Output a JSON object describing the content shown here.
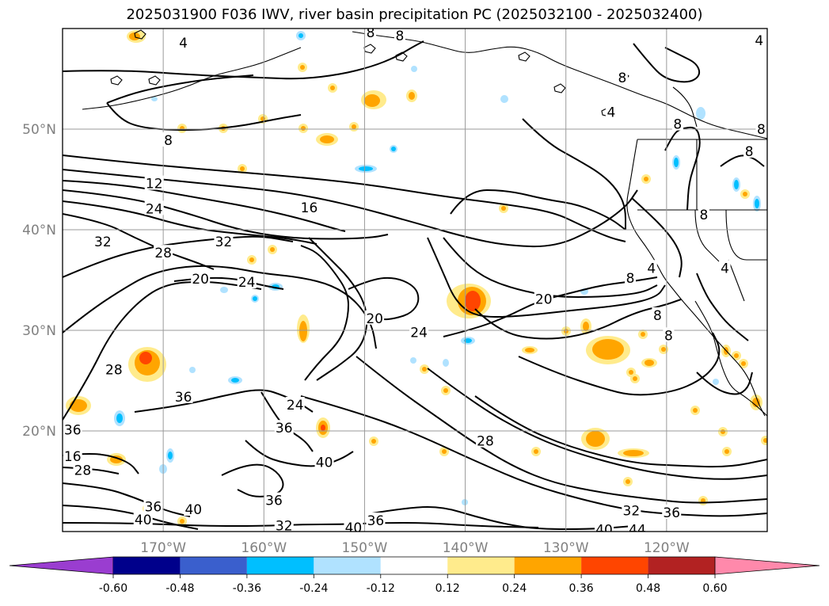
{
  "title": "2025031900 F036 IWV, river basin precipitation PC (2025032100 - 2025032400)",
  "chart_data": {
    "type": "map",
    "title": "2025031900 F036 IWV, river basin precipitation PC (2025032100 - 2025032400)",
    "extent": {
      "lon": [
        -180,
        -110
      ],
      "lat": [
        10,
        60
      ]
    },
    "grid": true,
    "lat_ticks": [
      {
        "value": 20,
        "label": "20°N"
      },
      {
        "value": 30,
        "label": "30°N"
      },
      {
        "value": 40,
        "label": "40°N"
      },
      {
        "value": 50,
        "label": "50°N"
      }
    ],
    "lon_ticks": [
      {
        "value": -170,
        "label": "170°W"
      },
      {
        "value": -160,
        "label": "160°W"
      },
      {
        "value": -150,
        "label": "150°W"
      },
      {
        "value": -140,
        "label": "140°W"
      },
      {
        "value": -130,
        "label": "130°W"
      },
      {
        "value": -120,
        "label": "120°W"
      }
    ],
    "iwv_contour_levels": [
      4,
      8,
      12,
      16,
      20,
      24,
      28,
      32,
      36,
      40,
      44
    ],
    "contour_labels": [
      {
        "text": "4",
        "lon": -168.0,
        "lat": 58.6
      },
      {
        "text": "8",
        "lon": -149.4,
        "lat": 59.6
      },
      {
        "text": "8",
        "lon": -146.5,
        "lat": 59.3
      },
      {
        "text": "8",
        "lon": -124.4,
        "lat": 55.1
      },
      {
        "text": "4",
        "lon": -110.8,
        "lat": 58.8
      },
      {
        "text": "4",
        "lon": -125.5,
        "lat": 51.7
      },
      {
        "text": "8",
        "lon": -118.9,
        "lat": 50.5
      },
      {
        "text": "8",
        "lon": -110.6,
        "lat": 50.0
      },
      {
        "text": "8",
        "lon": -169.5,
        "lat": 48.9
      },
      {
        "text": "8",
        "lon": -111.8,
        "lat": 47.8
      },
      {
        "text": "8",
        "lon": -116.3,
        "lat": 41.5
      },
      {
        "text": "12",
        "lon": -170.9,
        "lat": 44.6
      },
      {
        "text": "16",
        "lon": -155.5,
        "lat": 42.2
      },
      {
        "text": "24",
        "lon": -170.9,
        "lat": 42.1
      },
      {
        "text": "32",
        "lon": -176.0,
        "lat": 38.8
      },
      {
        "text": "32",
        "lon": -164.0,
        "lat": 38.8
      },
      {
        "text": "28",
        "lon": -170.0,
        "lat": 37.7
      },
      {
        "text": "20",
        "lon": -166.3,
        "lat": 35.1
      },
      {
        "text": "24",
        "lon": -161.7,
        "lat": 34.8
      },
      {
        "text": "8",
        "lon": -123.6,
        "lat": 35.2
      },
      {
        "text": "4",
        "lon": -121.5,
        "lat": 36.2
      },
      {
        "text": "4",
        "lon": -114.2,
        "lat": 36.2
      },
      {
        "text": "20",
        "lon": -132.2,
        "lat": 33.1
      },
      {
        "text": "20",
        "lon": -149.0,
        "lat": 31.2
      },
      {
        "text": "24",
        "lon": -144.6,
        "lat": 29.8
      },
      {
        "text": "8",
        "lon": -120.9,
        "lat": 31.5
      },
      {
        "text": "8",
        "lon": -119.8,
        "lat": 29.5
      },
      {
        "text": "28",
        "lon": -174.9,
        "lat": 26.1
      },
      {
        "text": "36",
        "lon": -168.0,
        "lat": 23.4
      },
      {
        "text": "24",
        "lon": -156.9,
        "lat": 22.6
      },
      {
        "text": "36",
        "lon": -179.0,
        "lat": 20.1
      },
      {
        "text": "36",
        "lon": -158.0,
        "lat": 20.3
      },
      {
        "text": "28",
        "lon": -138.0,
        "lat": 19.0
      },
      {
        "text": "16",
        "lon": -179.0,
        "lat": 17.5
      },
      {
        "text": "28",
        "lon": -178.0,
        "lat": 16.1
      },
      {
        "text": "40",
        "lon": -154.0,
        "lat": 16.9
      },
      {
        "text": "36",
        "lon": -159.0,
        "lat": 13.1
      },
      {
        "text": "36",
        "lon": -171.0,
        "lat": 12.5
      },
      {
        "text": "40",
        "lon": -167.0,
        "lat": 12.2
      },
      {
        "text": "40",
        "lon": -172.0,
        "lat": 11.2
      },
      {
        "text": "32",
        "lon": -158.0,
        "lat": 10.6
      },
      {
        "text": "40",
        "lon": -151.1,
        "lat": 10.4
      },
      {
        "text": "36",
        "lon": -148.9,
        "lat": 11.1
      },
      {
        "text": "40",
        "lon": -126.2,
        "lat": 10.2
      },
      {
        "text": "32",
        "lon": -123.5,
        "lat": 12.1
      },
      {
        "text": "36",
        "lon": -119.5,
        "lat": 11.9
      },
      {
        "text": "44",
        "lon": -122.9,
        "lat": 10.2
      }
    ],
    "colorbar": {
      "ticks": [
        "-0.60",
        "-0.48",
        "-0.36",
        "-0.24",
        "-0.12",
        "0.12",
        "0.24",
        "0.36",
        "0.48",
        "0.60"
      ],
      "colors": [
        "#9a3dd0",
        "#00008b",
        "#3a5fcd",
        "#00bfff",
        "#b0e2ff",
        "#ffffff",
        "#ffeb8c",
        "#ffa500",
        "#ff4500",
        "#b22222",
        "#ff89ab"
      ],
      "extend": "both"
    }
  }
}
